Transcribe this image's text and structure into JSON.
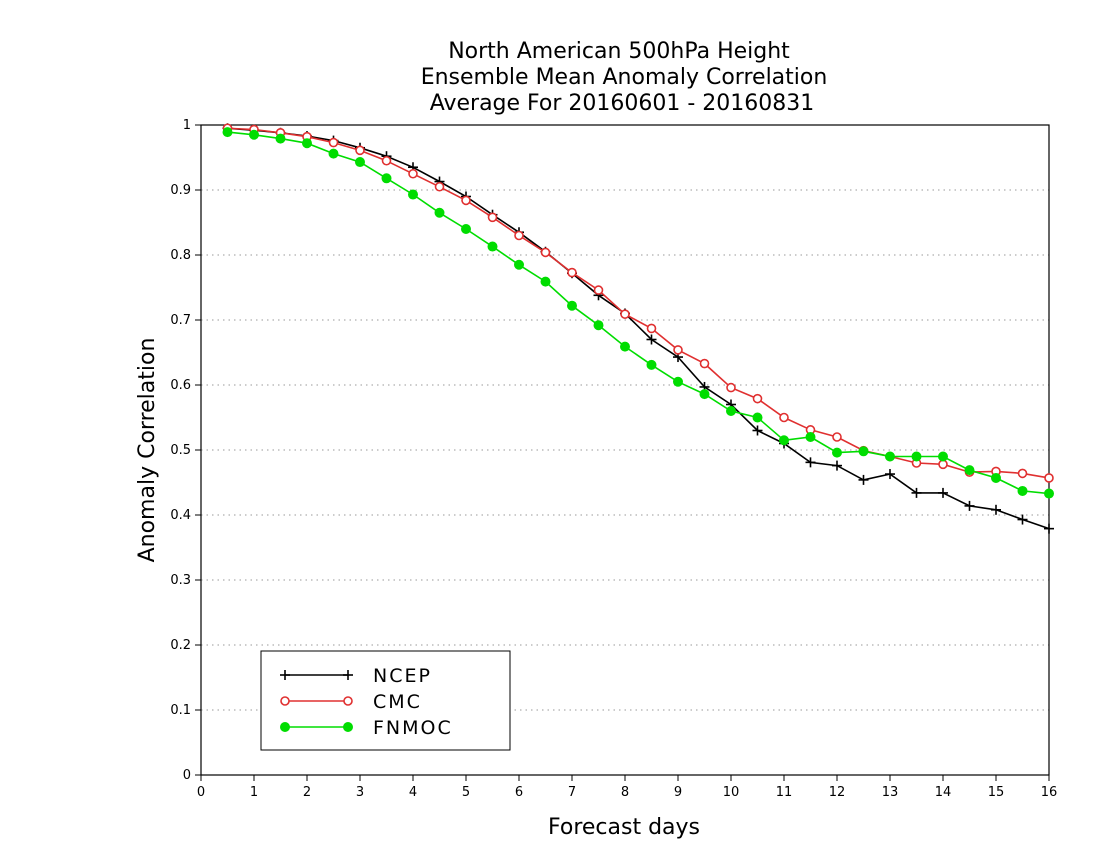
{
  "chart_data": {
    "type": "line",
    "title": [
      "North American 500hPa Height",
      "Ensemble Mean Anomaly Correlation",
      "Average For 20160601 - 20160831"
    ],
    "xlabel": "Forecast days",
    "ylabel": "Anomaly Correlation",
    "xlim": [
      0,
      16
    ],
    "ylim": [
      0,
      1
    ],
    "x_ticks": [
      "0",
      "1",
      "2",
      "3",
      "4",
      "5",
      "6",
      "7",
      "8",
      "9",
      "10",
      "11",
      "12",
      "13",
      "14",
      "15",
      "16"
    ],
    "y_ticks": [
      "0",
      "0.1",
      "0.2",
      "0.3",
      "0.4",
      "0.5",
      "0.6",
      "0.7",
      "0.8",
      "0.9",
      "1"
    ],
    "grid": "horizontal dotted",
    "legend_position": "bottom-left",
    "x": [
      0.5,
      1,
      1.5,
      2,
      2.5,
      3,
      3.5,
      4,
      4.5,
      5,
      5.5,
      6,
      6.5,
      7,
      7.5,
      8,
      8.5,
      9,
      9.5,
      10,
      10.5,
      11,
      11.5,
      12,
      12.5,
      13,
      13.5,
      14,
      14.5,
      15,
      15.5,
      16
    ],
    "series": [
      {
        "name": "NCEP",
        "color": "#000000",
        "marker": "plus",
        "values": [
          0.995,
          0.992,
          0.988,
          0.983,
          0.976,
          0.965,
          0.952,
          0.935,
          0.913,
          0.89,
          0.862,
          0.835,
          0.805,
          0.772,
          0.738,
          0.71,
          0.67,
          0.643,
          0.597,
          0.57,
          0.53,
          0.51,
          0.481,
          0.476,
          0.454,
          0.463,
          0.434,
          0.434,
          0.414,
          0.408,
          0.393,
          0.379
        ]
      },
      {
        "name": "CMC",
        "color": "#e03030",
        "marker": "open-circle",
        "values": [
          0.995,
          0.993,
          0.988,
          0.982,
          0.973,
          0.961,
          0.945,
          0.925,
          0.905,
          0.884,
          0.858,
          0.83,
          0.804,
          0.773,
          0.746,
          0.709,
          0.687,
          0.654,
          0.633,
          0.596,
          0.579,
          0.55,
          0.531,
          0.52,
          0.499,
          0.49,
          0.48,
          0.478,
          0.466,
          0.467,
          0.464,
          0.457
        ]
      },
      {
        "name": "FNMOC",
        "color": "#00dd00",
        "marker": "filled-circle",
        "values": [
          0.989,
          0.985,
          0.979,
          0.972,
          0.956,
          0.943,
          0.918,
          0.893,
          0.865,
          0.84,
          0.813,
          0.785,
          0.759,
          0.722,
          0.692,
          0.659,
          0.631,
          0.605,
          0.586,
          0.56,
          0.55,
          0.515,
          0.52,
          0.496,
          0.498,
          0.49,
          0.49,
          0.49,
          0.469,
          0.457,
          0.437,
          0.433
        ]
      }
    ]
  }
}
